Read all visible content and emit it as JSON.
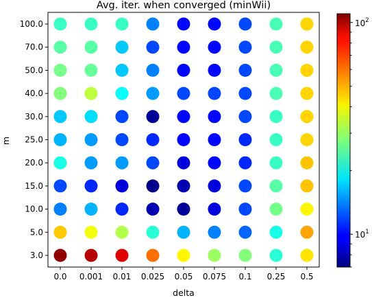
{
  "chart_data": {
    "type": "scatter",
    "title": "Avg. iter. when converged (minWii)",
    "xlabel": "delta",
    "ylabel": "m",
    "x_categories": [
      "0.0",
      "0.001",
      "0.01",
      "0.025",
      "0.05",
      "0.075",
      "0.1",
      "0.25",
      "0.5"
    ],
    "y_categories": [
      "3.0",
      "5.0",
      "10.0",
      "15.0",
      "20.0",
      "25.0",
      "30.0",
      "40.0",
      "50.0",
      "70.0",
      "100.0"
    ],
    "colormap": "jet",
    "color_scale": "log",
    "color_range": [
      7,
      110
    ],
    "colorbar_ticks": [
      {
        "value": 10,
        "label": "10",
        "exp": "1"
      },
      {
        "value": 100,
        "label": "10",
        "exp": "2"
      }
    ],
    "grid": false,
    "values": [
      [
        105,
        95,
        85,
        58,
        40,
        30,
        28,
        22,
        42
      ],
      [
        45,
        38,
        32,
        22,
        16,
        14,
        13,
        21,
        50
      ],
      [
        14,
        16,
        11,
        8,
        7.5,
        9,
        12,
        27,
        40
      ],
      [
        12,
        11,
        9,
        7.2,
        8,
        9,
        12,
        25,
        46
      ],
      [
        21,
        15,
        15,
        12,
        9,
        10,
        11,
        23,
        46
      ],
      [
        16,
        15,
        12,
        11,
        10,
        10,
        11,
        23,
        44
      ],
      [
        17,
        18,
        12,
        7.5,
        10,
        10,
        12,
        23,
        44
      ],
      [
        28,
        33,
        20,
        15,
        12,
        12,
        12,
        24,
        44
      ],
      [
        27,
        26,
        17,
        14,
        10,
        10,
        12,
        24,
        44
      ],
      [
        25,
        25,
        17,
        12,
        10,
        10,
        12,
        24,
        44
      ],
      [
        23,
        23,
        23,
        14,
        10,
        10,
        12,
        24,
        44
      ]
    ]
  }
}
